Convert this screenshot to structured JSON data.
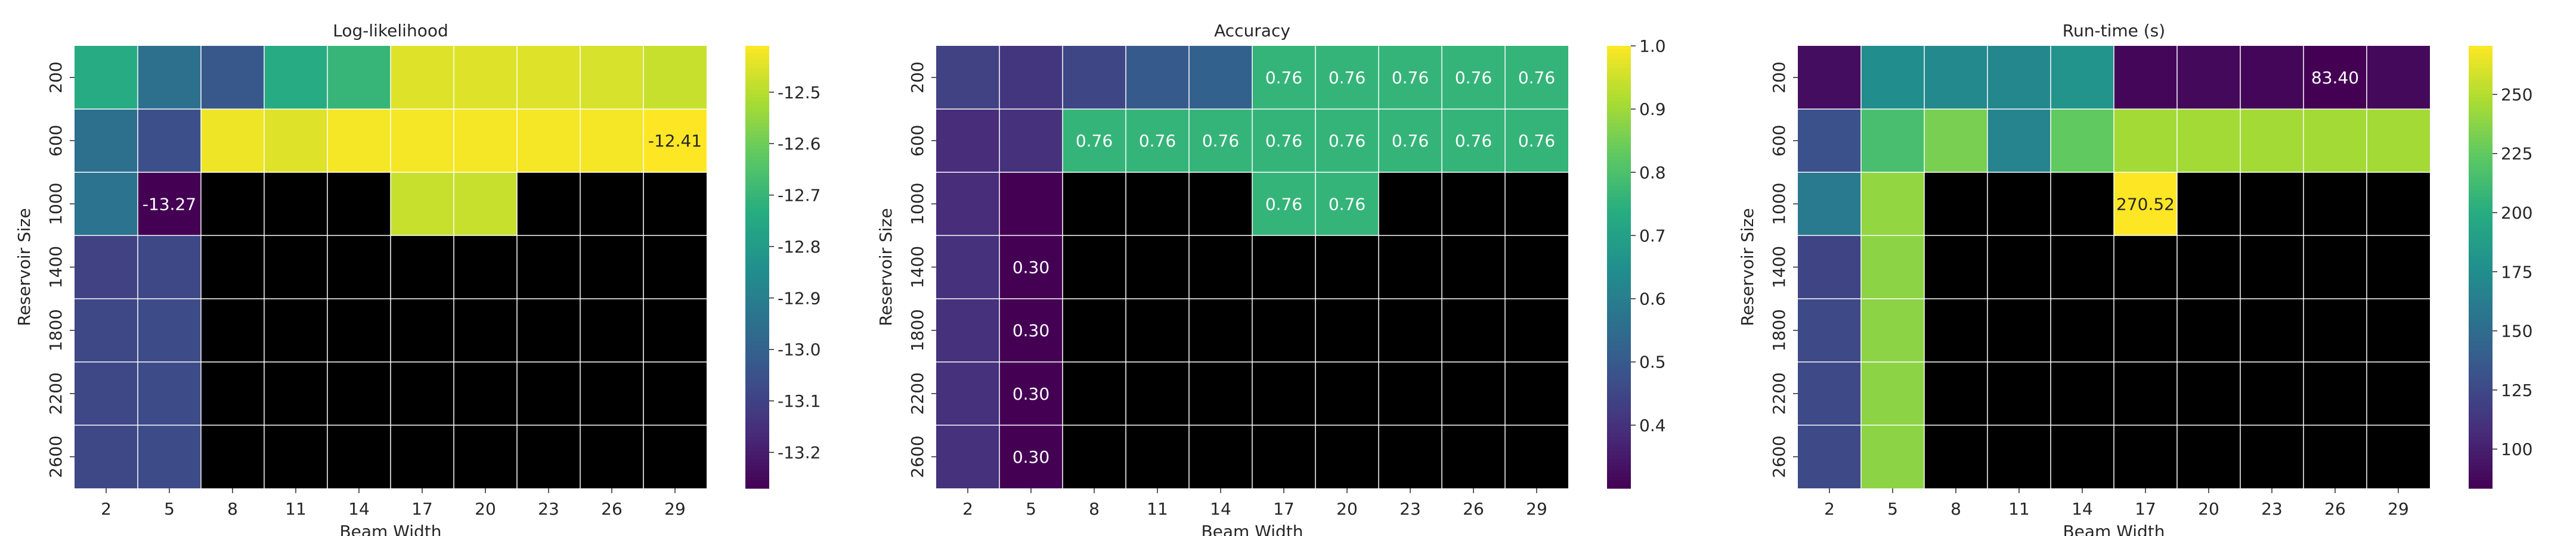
{
  "chart_data": [
    {
      "type": "heatmap",
      "title": "Log-likelihood",
      "xlabel": "Beam Width",
      "ylabel": "Reservoir Size",
      "x": [
        "2",
        "5",
        "8",
        "11",
        "14",
        "17",
        "20",
        "23",
        "26",
        "29"
      ],
      "y": [
        "200",
        "600",
        "1000",
        "1400",
        "1800",
        "2200",
        "2600"
      ],
      "colormap": "viridis",
      "missing_color": "#000000",
      "vmin": -13.27,
      "vmax": -12.41,
      "colorbar_ticks": [
        "-12.5",
        "-12.6",
        "-12.7",
        "-12.8",
        "-12.9",
        "-13.0",
        "-13.1",
        "-13.2"
      ],
      "values": [
        [
          -12.74,
          -12.95,
          -13.03,
          -12.74,
          -12.7,
          -12.45,
          -12.45,
          -12.45,
          -12.46,
          -12.48
        ],
        [
          -12.95,
          -13.06,
          -12.43,
          -12.45,
          -12.42,
          -12.42,
          -12.42,
          -12.42,
          -12.42,
          -12.41
        ],
        [
          -12.94,
          -13.27,
          null,
          null,
          null,
          -12.48,
          -12.48,
          null,
          null,
          null
        ],
        [
          -13.1,
          -13.08,
          null,
          null,
          null,
          null,
          null,
          null,
          null,
          null
        ],
        [
          -13.08,
          -13.07,
          null,
          null,
          null,
          null,
          null,
          null,
          null,
          null
        ],
        [
          -13.08,
          -13.07,
          null,
          null,
          null,
          null,
          null,
          null,
          null,
          null
        ],
        [
          -13.08,
          -13.07,
          null,
          null,
          null,
          null,
          null,
          null,
          null,
          null
        ]
      ],
      "annotations": [
        {
          "row": 2,
          "col": 1,
          "text": "-13.27"
        },
        {
          "row": 1,
          "col": 9,
          "text": "-12.41"
        }
      ]
    },
    {
      "type": "heatmap",
      "title": "Accuracy",
      "xlabel": "Beam Width",
      "ylabel": "Reservoir Size",
      "x": [
        "2",
        "5",
        "8",
        "11",
        "14",
        "17",
        "20",
        "23",
        "26",
        "29"
      ],
      "y": [
        "200",
        "600",
        "1000",
        "1400",
        "1800",
        "2200",
        "2600"
      ],
      "colormap": "viridis",
      "missing_color": "#000000",
      "vmin": 0.3,
      "vmax": 1.0,
      "colorbar_ticks": [
        "1.0",
        "0.9",
        "0.8",
        "0.7",
        "0.6",
        "0.5",
        "0.4"
      ],
      "values": [
        [
          0.44,
          0.41,
          0.45,
          0.5,
          0.52,
          0.76,
          0.76,
          0.76,
          0.76,
          0.76
        ],
        [
          0.39,
          0.4,
          0.76,
          0.76,
          0.76,
          0.76,
          0.76,
          0.76,
          0.76,
          0.76
        ],
        [
          0.39,
          0.3,
          null,
          null,
          null,
          0.76,
          0.76,
          null,
          null,
          null
        ],
        [
          0.4,
          0.3,
          null,
          null,
          null,
          null,
          null,
          null,
          null,
          null
        ],
        [
          0.4,
          0.3,
          null,
          null,
          null,
          null,
          null,
          null,
          null,
          null
        ],
        [
          0.4,
          0.3,
          null,
          null,
          null,
          null,
          null,
          null,
          null,
          null
        ],
        [
          0.4,
          0.3,
          null,
          null,
          null,
          null,
          null,
          null,
          null,
          null
        ]
      ],
      "annotations": [
        {
          "row": 0,
          "col": 5,
          "text": "0.76"
        },
        {
          "row": 0,
          "col": 6,
          "text": "0.76"
        },
        {
          "row": 0,
          "col": 7,
          "text": "0.76"
        },
        {
          "row": 0,
          "col": 8,
          "text": "0.76"
        },
        {
          "row": 0,
          "col": 9,
          "text": "0.76"
        },
        {
          "row": 1,
          "col": 2,
          "text": "0.76"
        },
        {
          "row": 1,
          "col": 3,
          "text": "0.76"
        },
        {
          "row": 1,
          "col": 4,
          "text": "0.76"
        },
        {
          "row": 1,
          "col": 5,
          "text": "0.76"
        },
        {
          "row": 1,
          "col": 6,
          "text": "0.76"
        },
        {
          "row": 1,
          "col": 7,
          "text": "0.76"
        },
        {
          "row": 1,
          "col": 8,
          "text": "0.76"
        },
        {
          "row": 1,
          "col": 9,
          "text": "0.76"
        },
        {
          "row": 2,
          "col": 5,
          "text": "0.76"
        },
        {
          "row": 2,
          "col": 6,
          "text": "0.76"
        },
        {
          "row": 3,
          "col": 1,
          "text": "0.30"
        },
        {
          "row": 4,
          "col": 1,
          "text": "0.30"
        },
        {
          "row": 5,
          "col": 1,
          "text": "0.30"
        },
        {
          "row": 6,
          "col": 1,
          "text": "0.30"
        }
      ]
    },
    {
      "type": "heatmap",
      "title": "Run-time (s)",
      "xlabel": "Beam Width",
      "ylabel": "Reservoir Size",
      "x": [
        "2",
        "5",
        "8",
        "11",
        "14",
        "17",
        "20",
        "23",
        "26",
        "29"
      ],
      "y": [
        "200",
        "600",
        "1000",
        "1400",
        "1800",
        "2200",
        "2600"
      ],
      "colormap": "viridis",
      "missing_color": "#000000",
      "vmin": 83.4,
      "vmax": 270.52,
      "colorbar_ticks": [
        "250",
        "225",
        "200",
        "175",
        "150",
        "125",
        "100"
      ],
      "values": [
        [
          90,
          175,
          172,
          170,
          180,
          86,
          88,
          86,
          83.4,
          88
        ],
        [
          130,
          215,
          232,
          168,
          225,
          245,
          245,
          245,
          245,
          245
        ],
        [
          160,
          240,
          null,
          null,
          null,
          270.52,
          null,
          null,
          null,
          null
        ],
        [
          122,
          238,
          null,
          null,
          null,
          null,
          null,
          null,
          null,
          null
        ],
        [
          125,
          238,
          null,
          null,
          null,
          null,
          null,
          null,
          null,
          null
        ],
        [
          125,
          238,
          null,
          null,
          null,
          null,
          null,
          null,
          null,
          null
        ],
        [
          125,
          238,
          null,
          null,
          null,
          null,
          null,
          null,
          null,
          null
        ]
      ],
      "annotations": [
        {
          "row": 0,
          "col": 8,
          "text": "83.40"
        },
        {
          "row": 2,
          "col": 5,
          "text": "270.52"
        }
      ]
    }
  ]
}
